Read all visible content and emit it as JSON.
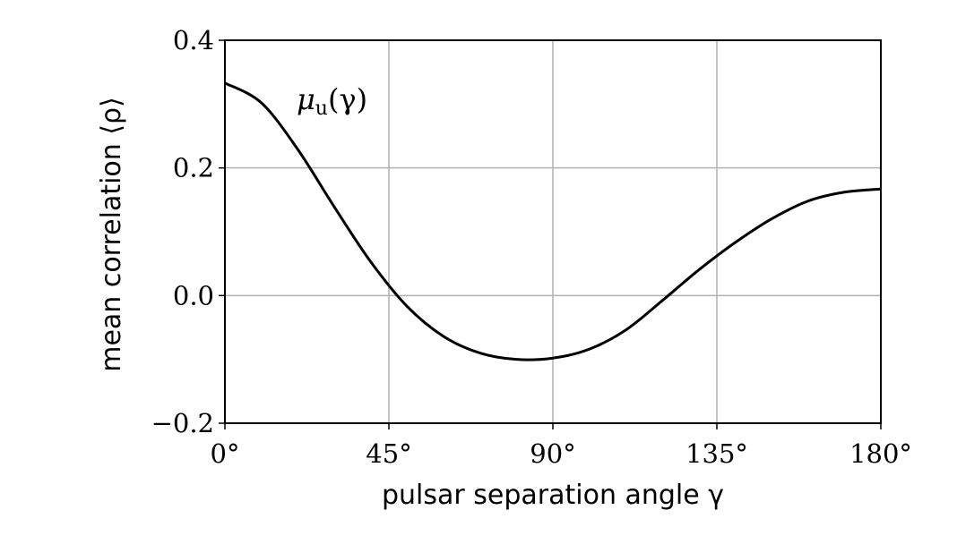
{
  "chart_data": {
    "type": "line",
    "xlabel": "pulsar separation angle γ",
    "ylabel": "mean correlation ⟨ρ⟩",
    "xlim": [
      0,
      180
    ],
    "ylim": [
      -0.2,
      0.4
    ],
    "xticks": [
      0,
      45,
      90,
      135,
      180
    ],
    "xtick_labels": [
      "0°",
      "45°",
      "90°",
      "135°",
      "180°"
    ],
    "yticks": [
      -0.2,
      0.0,
      0.2,
      0.4
    ],
    "ytick_labels": [
      "−0.2",
      "0.0",
      "0.2",
      "0.4"
    ],
    "grid": true,
    "annotation": {
      "base": "μ",
      "sub": "u",
      "rest": "(γ)"
    },
    "series": [
      {
        "color": "#000000",
        "x": [
          0,
          10,
          20,
          30,
          40,
          50,
          60,
          70,
          80,
          90,
          100,
          110,
          120,
          130,
          140,
          150,
          160,
          170,
          180
        ],
        "y": [
          0.333,
          0.302,
          0.229,
          0.139,
          0.053,
          -0.017,
          -0.064,
          -0.09,
          -0.1,
          -0.098,
          -0.084,
          -0.054,
          -0.008,
          0.04,
          0.083,
          0.12,
          0.148,
          0.162,
          0.167
        ]
      }
    ]
  }
}
